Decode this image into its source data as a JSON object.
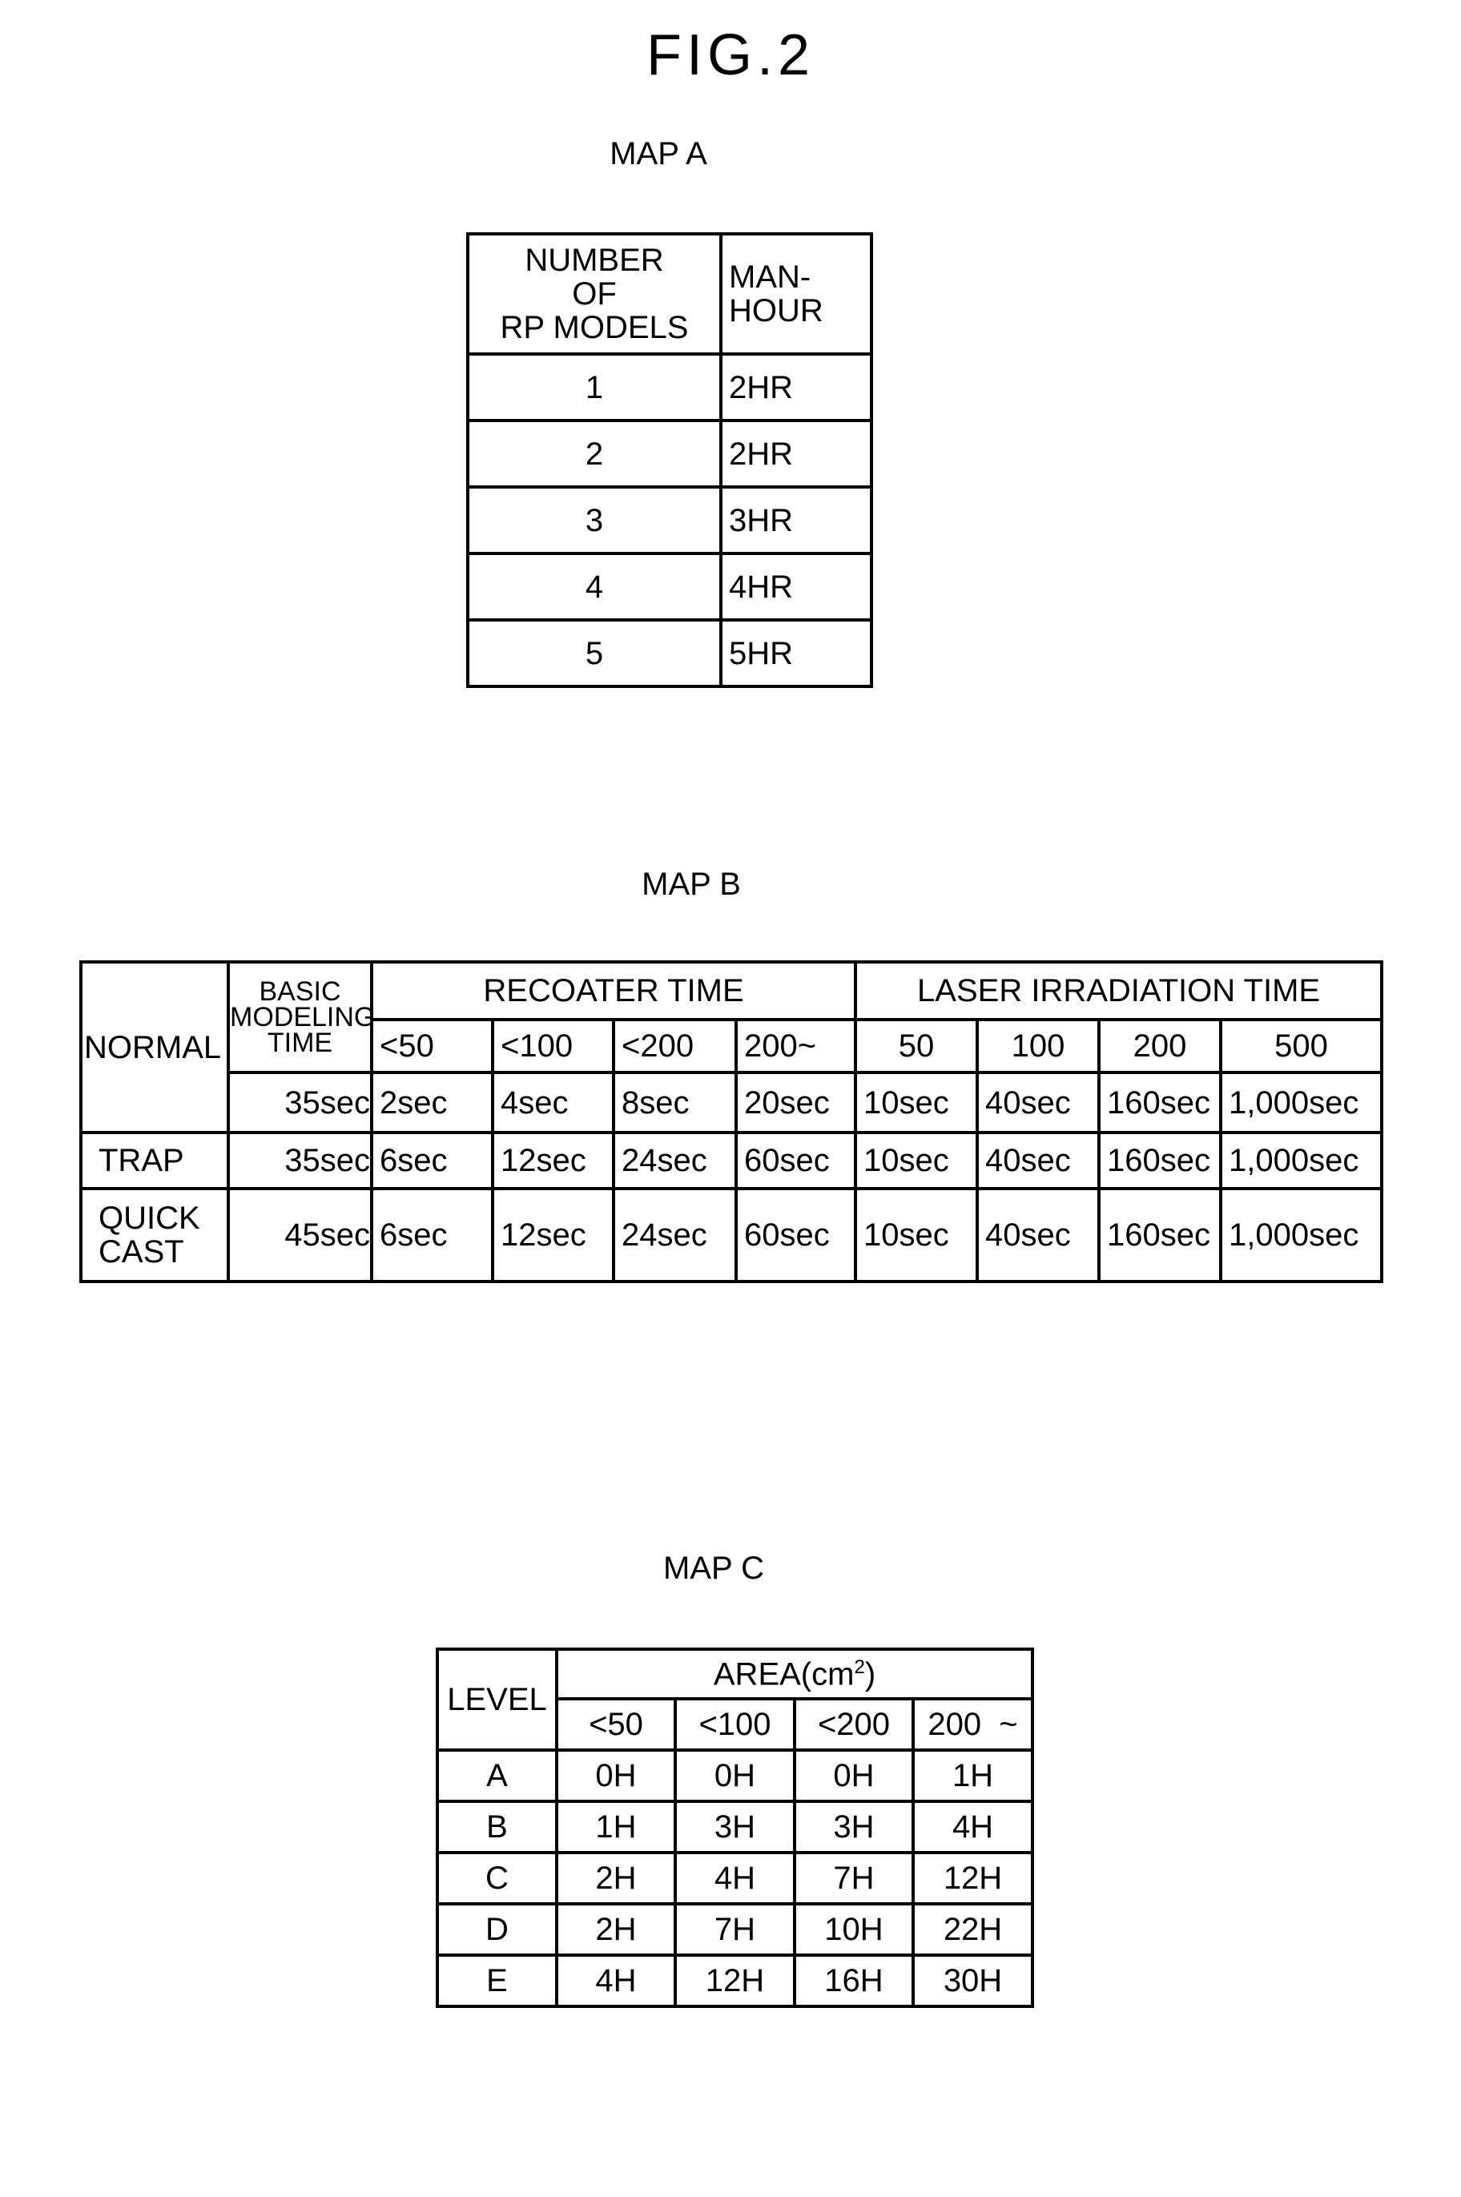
{
  "figure_title": "FIG.2",
  "map_a": {
    "label": "MAP A",
    "headers": [
      "NUMBER\nOF\nRP MODELS",
      "MAN-\nHOUR"
    ],
    "rows": [
      [
        "1",
        "2HR"
      ],
      [
        "2",
        "2HR"
      ],
      [
        "3",
        "3HR"
      ],
      [
        "4",
        "4HR"
      ],
      [
        "5",
        "5HR"
      ]
    ]
  },
  "map_b": {
    "label": "MAP B",
    "basic_header": "BASIC\nMODELING\nTIME",
    "recoater_header": "RECOATER TIME",
    "laser_header": "LASER IRRADIATION TIME",
    "recoater_ranges": [
      "<50",
      "<100",
      "<200",
      "200~"
    ],
    "laser_ranges": [
      "50",
      "100",
      "200",
      "500"
    ],
    "rows": [
      {
        "name": "NORMAL",
        "basic": "35sec",
        "recoater": [
          "2sec",
          "4sec",
          "8sec",
          "20sec"
        ],
        "laser": [
          "10sec",
          "40sec",
          "160sec",
          "1,000sec"
        ]
      },
      {
        "name": "TRAP",
        "basic": "35sec",
        "recoater": [
          "6sec",
          "12sec",
          "24sec",
          "60sec"
        ],
        "laser": [
          "10sec",
          "40sec",
          "160sec",
          "1,000sec"
        ]
      },
      {
        "name": "QUICK\nCAST",
        "basic": "45sec",
        "recoater": [
          "6sec",
          "12sec",
          "24sec",
          "60sec"
        ],
        "laser": [
          "10sec",
          "40sec",
          "160sec",
          "1,000sec"
        ]
      }
    ]
  },
  "map_c": {
    "label": "MAP C",
    "level_header": "LEVEL",
    "area_header": "AREA(cm",
    "area_unit_exp": "2",
    "area_header_close": ")",
    "ranges": [
      "<50",
      "<100",
      "<200",
      "200  ~"
    ],
    "rows": [
      [
        "A",
        "0H",
        "0H",
        "0H",
        "1H"
      ],
      [
        "B",
        "1H",
        "3H",
        "3H",
        "4H"
      ],
      [
        "C",
        "2H",
        "4H",
        "7H",
        "12H"
      ],
      [
        "D",
        "2H",
        "7H",
        "10H",
        "22H"
      ],
      [
        "E",
        "4H",
        "12H",
        "16H",
        "30H"
      ]
    ]
  }
}
